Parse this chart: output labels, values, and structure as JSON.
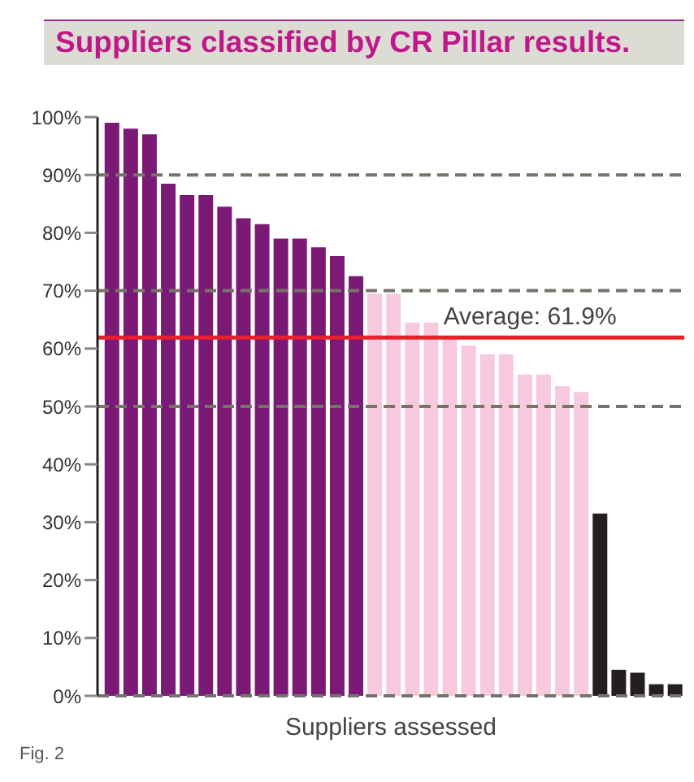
{
  "chart_data": {
    "type": "bar",
    "title": "Suppliers classified by CR Pillar results.",
    "xlabel": "Suppliers assessed",
    "categories": [
      null,
      null,
      null,
      null,
      null,
      null,
      null,
      null,
      null,
      null,
      null,
      null,
      null,
      null,
      null,
      null,
      null,
      null,
      null,
      null,
      null,
      null,
      null,
      null,
      null,
      null,
      null,
      null,
      null,
      null,
      null
    ],
    "values": [
      99,
      98,
      97,
      88.5,
      86.5,
      86.5,
      84.5,
      82.5,
      81.5,
      79,
      79,
      77.5,
      76,
      72.5,
      69.5,
      69.5,
      64.5,
      64.5,
      62,
      60.5,
      59,
      59,
      55.5,
      55.5,
      53.5,
      52.5,
      31.5,
      4.5,
      4,
      2,
      2
    ],
    "colors": [
      "#7b1a76",
      "#7b1a76",
      "#7b1a76",
      "#7b1a76",
      "#7b1a76",
      "#7b1a76",
      "#7b1a76",
      "#7b1a76",
      "#7b1a76",
      "#7b1a76",
      "#7b1a76",
      "#7b1a76",
      "#7b1a76",
      "#7b1a76",
      "#f7c9de",
      "#f7c9de",
      "#f7c9de",
      "#f7c9de",
      "#f7c9de",
      "#f7c9de",
      "#f7c9de",
      "#f7c9de",
      "#f7c9de",
      "#f7c9de",
      "#f7c9de",
      "#f7c9de",
      "#231f20",
      "#231f20",
      "#231f20",
      "#231f20",
      "#231f20"
    ],
    "ylim": [
      0,
      100
    ],
    "yticks": [
      {
        "value": 0,
        "label": "0%"
      },
      {
        "value": 10,
        "label": "10%"
      },
      {
        "value": 20,
        "label": "20%"
      },
      {
        "value": 30,
        "label": "30%"
      },
      {
        "value": 40,
        "label": "40%"
      },
      {
        "value": 50,
        "label": "50%"
      },
      {
        "value": 60,
        "label": "60%"
      },
      {
        "value": 70,
        "label": "70%"
      },
      {
        "value": 80,
        "label": "80%"
      },
      {
        "value": 90,
        "label": "90%"
      },
      {
        "value": 100,
        "label": "100%"
      }
    ],
    "ref_lines": [
      {
        "axis": "y",
        "value": 90,
        "color": "#77736a",
        "line_style": "dashed"
      },
      {
        "axis": "y",
        "value": 70,
        "color": "#77736a",
        "line_style": "dashed"
      },
      {
        "axis": "y",
        "value": 50,
        "color": "#77736a",
        "line_style": "dashed"
      },
      {
        "axis": "y",
        "value": 61.9,
        "label": "Average: 61.9%",
        "color": "#e8202a",
        "line_style": "solid"
      }
    ],
    "annotations": [
      "Fig. 2"
    ]
  }
}
